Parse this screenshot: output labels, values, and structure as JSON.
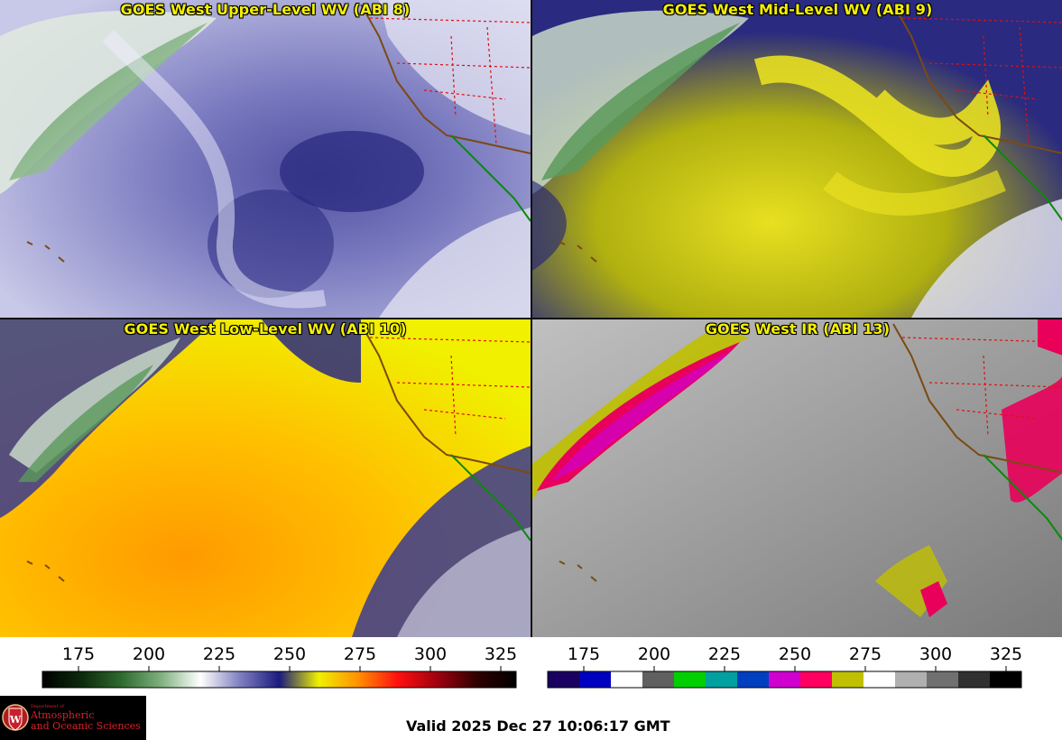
{
  "panels": [
    {
      "title": "GOES West Upper-Level WV (ABI 8)",
      "palette": "wv"
    },
    {
      "title": "GOES West Mid-Level WV (ABI 9)",
      "palette": "wv"
    },
    {
      "title": "GOES West Low-Level WV (ABI 10)",
      "palette": "wv"
    },
    {
      "title": "GOES West IR (ABI 13)",
      "palette": "ir"
    }
  ],
  "colorbars": [
    {
      "ticks": [
        "175",
        "200",
        "225",
        "250",
        "275",
        "300",
        "325"
      ],
      "stops": [
        "#000000",
        "#0c2a0c",
        "#2e6a2e",
        "#7fb07f",
        "#ffffff",
        "#8080c0",
        "#1a1a80",
        "#f0f000",
        "#ff9000",
        "#ff1010",
        "#a00010",
        "#300000",
        "#000000"
      ]
    },
    {
      "ticks": [
        "175",
        "200",
        "225",
        "250",
        "275",
        "300",
        "325"
      ],
      "segments": [
        "#1a0060",
        "#0000c0",
        "#ffffff",
        "#606060",
        "#00d000",
        "#00a0a0",
        "#0040c0",
        "#d000d0",
        "#ff0060",
        "#c0c000",
        "#ffffff",
        "#b0b0b0",
        "#707070",
        "#303030",
        "#000000"
      ]
    }
  ],
  "logo": {
    "line1": "Department of",
    "line2": "Atmospheric",
    "line3": "and Oceanic Sciences"
  },
  "valid_text": "Valid 2025 Dec 27 10:06:17 GMT",
  "colors": {
    "title_yellow": "#f5f000",
    "coast_brown": "#7a4a12",
    "border_red": "#e01010",
    "mexico_green": "#0a8a0a"
  }
}
